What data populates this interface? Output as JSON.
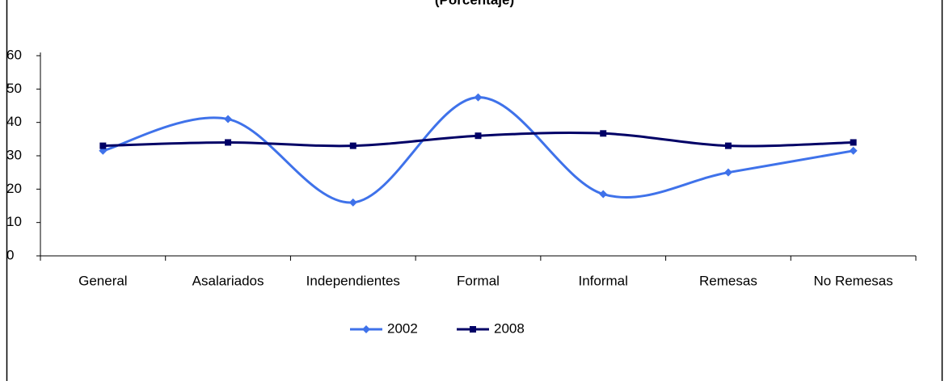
{
  "chart_data": {
    "type": "line",
    "title": "(Porcentaje)",
    "categories": [
      "General",
      "Asalariados",
      "Independientes",
      "Formal",
      "Informal",
      "Remesas",
      "No Remesas"
    ],
    "series": [
      {
        "name": "2002",
        "color": "#3f72ea",
        "marker": "diamond",
        "values": [
          31.5,
          41,
          16,
          47.5,
          18.5,
          25,
          31.5
        ]
      },
      {
        "name": "2008",
        "color": "#000066",
        "marker": "square",
        "values": [
          33,
          34,
          33,
          36,
          36.7,
          33,
          34
        ]
      }
    ],
    "ylim": [
      0,
      60
    ],
    "yticks": [
      0,
      10,
      20,
      30,
      40,
      50,
      60
    ],
    "smooth": true
  }
}
